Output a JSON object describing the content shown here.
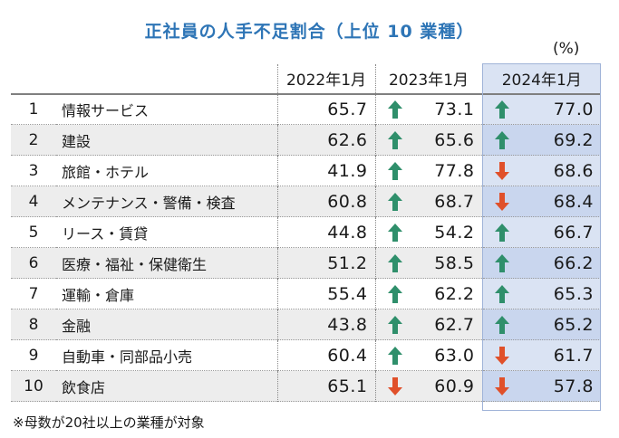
{
  "title": "正社員の人手不足割合（上位 10 業種）",
  "unit": "(%)",
  "note": "※母数が20社以上の業種が対象",
  "colors": {
    "up": "#2f8f6b",
    "down": "#e0502a",
    "highlight": "#dae3f3",
    "title": "#2e75b6"
  },
  "chart_data": {
    "type": "table",
    "title": "正社員の人手不足割合（上位 10 業種）",
    "columns": [
      "2022年1月",
      "2023年1月",
      "2024年1月"
    ],
    "rows": [
      {
        "rank": "1",
        "industry": "情報サービス",
        "v2022": "65.7",
        "v2023": "73.1",
        "v2024": "77.0",
        "t2023": "up",
        "t2024": "up"
      },
      {
        "rank": "2",
        "industry": "建設",
        "v2022": "62.6",
        "v2023": "65.6",
        "v2024": "69.2",
        "t2023": "up",
        "t2024": "up"
      },
      {
        "rank": "3",
        "industry": "旅館・ホテル",
        "v2022": "41.9",
        "v2023": "77.8",
        "v2024": "68.6",
        "t2023": "up",
        "t2024": "down"
      },
      {
        "rank": "4",
        "industry": "メンテナンス・警備・検査",
        "v2022": "60.8",
        "v2023": "68.7",
        "v2024": "68.4",
        "t2023": "up",
        "t2024": "down"
      },
      {
        "rank": "5",
        "industry": "リース・賃貸",
        "v2022": "44.8",
        "v2023": "54.2",
        "v2024": "66.7",
        "t2023": "up",
        "t2024": "up"
      },
      {
        "rank": "6",
        "industry": "医療・福祉・保健衛生",
        "v2022": "51.2",
        "v2023": "58.5",
        "v2024": "66.2",
        "t2023": "up",
        "t2024": "up"
      },
      {
        "rank": "7",
        "industry": "運輸・倉庫",
        "v2022": "55.4",
        "v2023": "62.2",
        "v2024": "65.3",
        "t2023": "up",
        "t2024": "up"
      },
      {
        "rank": "8",
        "industry": "金融",
        "v2022": "43.8",
        "v2023": "62.7",
        "v2024": "65.2",
        "t2023": "up",
        "t2024": "up"
      },
      {
        "rank": "9",
        "industry": "自動車・同部品小売",
        "v2022": "60.4",
        "v2023": "63.0",
        "v2024": "61.7",
        "t2023": "up",
        "t2024": "down"
      },
      {
        "rank": "10",
        "industry": "飲食店",
        "v2022": "65.1",
        "v2023": "60.9",
        "v2024": "57.8",
        "t2023": "down",
        "t2024": "down"
      }
    ]
  }
}
